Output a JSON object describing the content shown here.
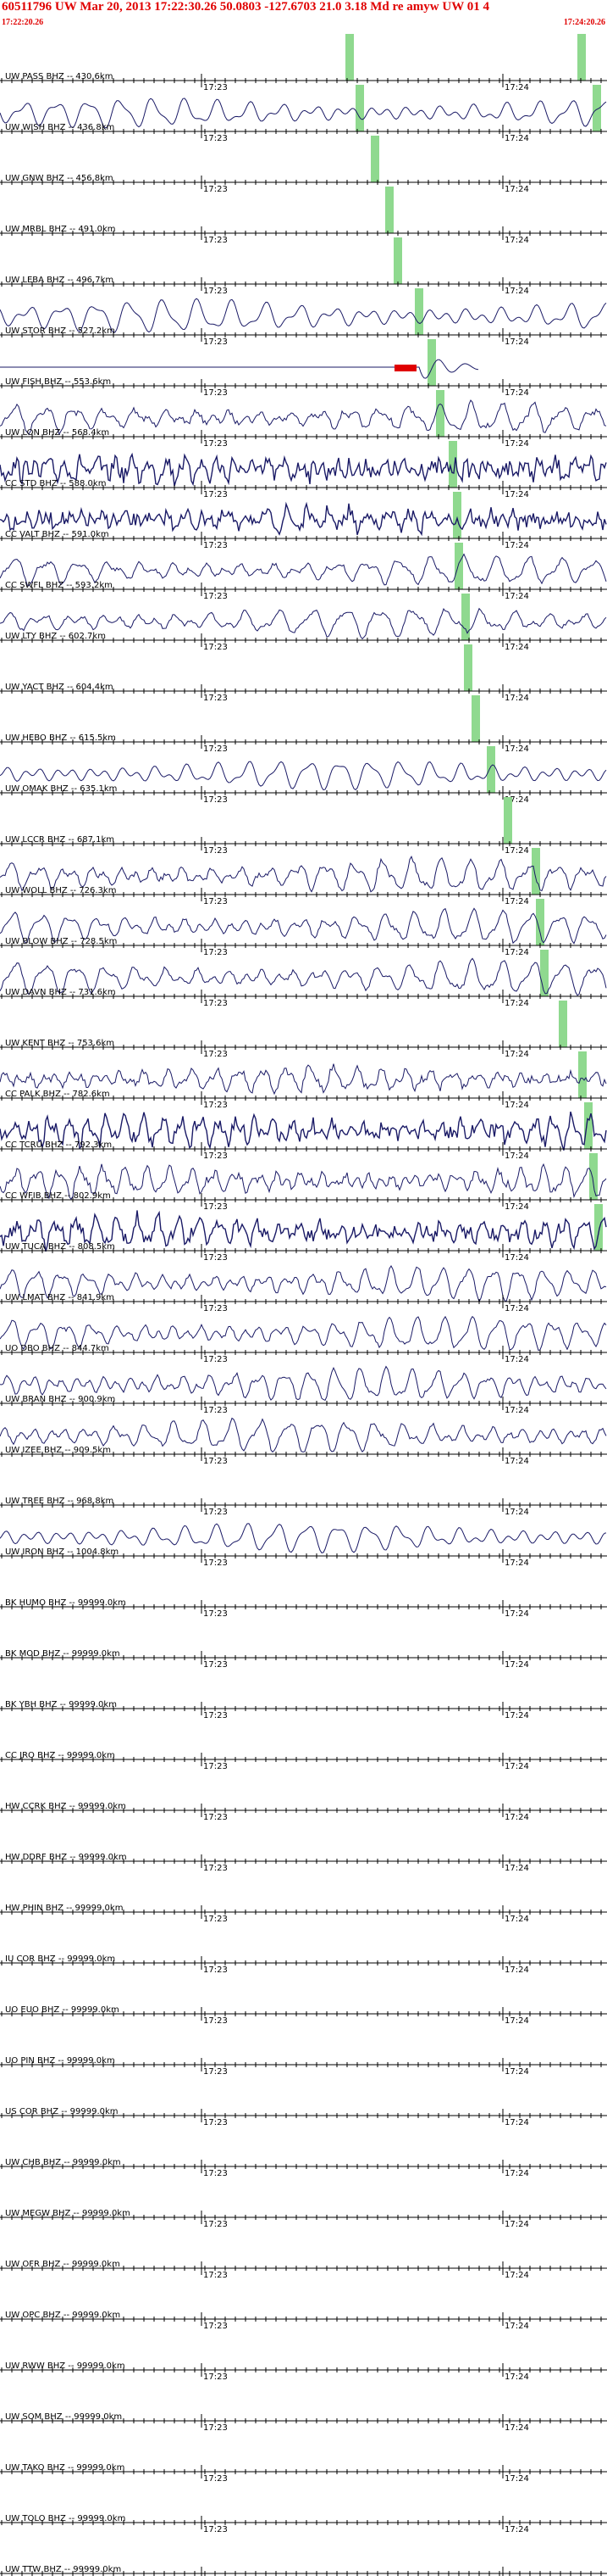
{
  "header": {
    "title": "60511796 UW Mar 20, 2013 17:22:30.26   50.0803 -127.6703 21.0 3.18 Md re amyw UW 01   4",
    "time_start": "17:22:20.26",
    "time_end": "17:24:20.26"
  },
  "colors": {
    "header_text": "#e00000",
    "trace": "#1a1a66",
    "pick_marker": "#8fd98f",
    "clip_marker": "#e00000",
    "axis": "#000000"
  },
  "chart_data": {
    "type": "line",
    "title": "60511796 UW Mar 20, 2013 17:22:30.26   50.0803 -127.6703 21.0 3.18 Md re amyw UW 01   4",
    "x_range": [
      "17:22:20.26",
      "17:24:20.26"
    ],
    "tick_labels": [
      "17:23",
      "17:24"
    ],
    "grid": false,
    "traces": [
      {
        "label": "UW PASS BHZ -- 430.6km",
        "amp": 0,
        "noise": 0,
        "period": 40,
        "pick": 408,
        "pick2": 682
      },
      {
        "label": "UW WISH BHZ -- 436.8km",
        "amp": 14,
        "noise": 0,
        "period": 38,
        "pick": 420,
        "pick2": 700
      },
      {
        "label": "UW GNW BHZ -- 456.8km",
        "amp": 0,
        "noise": 0,
        "period": 40,
        "pick": 438
      },
      {
        "label": "UW MRBL BHZ -- 491.0km",
        "amp": 0,
        "noise": 0,
        "period": 40,
        "pick": 455
      },
      {
        "label": "UW LEBA BHZ -- 496.7km",
        "amp": 0,
        "noise": 0,
        "period": 40,
        "pick": 465
      },
      {
        "label": "UW STOR BHZ -- 527.2km",
        "amp": 16,
        "noise": 0,
        "period": 40,
        "pick": 490
      },
      {
        "label": "UW FISH BHZ -- 553.6km",
        "amp": 0,
        "noise": 0,
        "period": 40,
        "pick": 505,
        "clip": [
          466,
          492
        ],
        "burst": 495
      },
      {
        "label": "UW LON BHZ -- 568.4km",
        "amp": 14,
        "noise": 3,
        "period": 36,
        "pick": 515
      },
      {
        "label": "CC STD BHZ -- 588.0km",
        "amp": 10,
        "noise": 10,
        "period": 20,
        "pick": 530
      },
      {
        "label": "CC VALT BHZ -- 591.0km",
        "amp": 10,
        "noise": 8,
        "period": 24,
        "pick": 535
      },
      {
        "label": "CC SWFL BHZ -- 593.2km",
        "amp": 14,
        "noise": 2,
        "period": 38,
        "pick": 537
      },
      {
        "label": "UW LTY BHZ -- 602.7km",
        "amp": 14,
        "noise": 2,
        "period": 40,
        "pick": 545
      },
      {
        "label": "UW YACT BHZ -- 604.4km",
        "amp": 0,
        "noise": 0,
        "period": 40,
        "pick": 548
      },
      {
        "label": "UW HEBO BHZ -- 615.5km",
        "amp": 0,
        "noise": 0,
        "period": 40,
        "pick": 557
      },
      {
        "label": "UW OMAK BHZ -- 635.1km",
        "amp": 14,
        "noise": 0,
        "period": 36,
        "pick": 575
      },
      {
        "label": "UW LCCR BHZ -- 687.1km",
        "amp": 0,
        "noise": 0,
        "period": 40,
        "pick": 595
      },
      {
        "label": "UW WOLL BHZ -- 726.3km",
        "amp": 16,
        "noise": 3,
        "period": 34,
        "pick": 628
      },
      {
        "label": "UW BLOW BHZ -- 728.5km",
        "amp": 16,
        "noise": 2,
        "period": 34,
        "pick": 633
      },
      {
        "label": "UW DAVN BHZ -- 731.6km",
        "amp": 16,
        "noise": 2,
        "period": 36,
        "pick": 638
      },
      {
        "label": "UW KENT BHZ -- 753.6km",
        "amp": 0,
        "noise": 0,
        "period": 40,
        "pick": 660
      },
      {
        "label": "CC PALK BHZ -- 782.6km",
        "amp": 12,
        "noise": 4,
        "period": 28,
        "pick": 683
      },
      {
        "label": "CC TCRU BHZ -- 792.3km",
        "amp": 14,
        "noise": 8,
        "period": 22,
        "pick": 690
      },
      {
        "label": "CC WFIB BHZ -- 802.9km",
        "amp": 14,
        "noise": 4,
        "period": 26,
        "pick": 696
      },
      {
        "label": "UW TUCA BHZ -- 808.5km",
        "amp": 14,
        "noise": 7,
        "period": 24,
        "pick": 702
      },
      {
        "label": "UW LMAT BHZ -- 841.9km",
        "amp": 16,
        "noise": 2,
        "period": 30
      },
      {
        "label": "UO DBO BHZ -- 844.7km",
        "amp": 16,
        "noise": 2,
        "period": 32
      },
      {
        "label": "UW BRAN BHZ -- 900.9km",
        "amp": 16,
        "noise": 2,
        "period": 30
      },
      {
        "label": "UW IZEE BHZ -- 909.5km",
        "amp": 16,
        "noise": 2,
        "period": 34
      },
      {
        "label": "UW TREE BHZ -- 968.8km",
        "amp": 0,
        "noise": 0,
        "period": 40
      },
      {
        "label": "UW IRON BHZ -- 1004.8km",
        "amp": 14,
        "noise": 0,
        "period": 36
      },
      {
        "label": "BK HUMO BHZ -- 99999.0km",
        "amp": 0,
        "noise": 0,
        "period": 40
      },
      {
        "label": "BK MOD BHZ -- 99999.0km",
        "amp": 0,
        "noise": 0,
        "period": 40
      },
      {
        "label": "BK YBH BHZ -- 99999.0km",
        "amp": 0,
        "noise": 0,
        "period": 40
      },
      {
        "label": "CC JRO BHZ -- 99999.0km",
        "amp": 0,
        "noise": 0,
        "period": 40
      },
      {
        "label": "HW CCRK BHZ -- 99999.0km",
        "amp": 0,
        "noise": 0,
        "period": 40
      },
      {
        "label": "HW DDRF BHZ -- 99999.0km",
        "amp": 0,
        "noise": 0,
        "period": 40
      },
      {
        "label": "HW PHIN BHZ -- 99999.0km",
        "amp": 0,
        "noise": 0,
        "period": 40
      },
      {
        "label": "IU COR BHZ -- 99999.0km",
        "amp": 0,
        "noise": 0,
        "period": 40
      },
      {
        "label": "UO EUO BHZ -- 99999.0km",
        "amp": 0,
        "noise": 0,
        "period": 40
      },
      {
        "label": "UO PIN BHZ -- 99999.0km",
        "amp": 0,
        "noise": 0,
        "period": 40
      },
      {
        "label": "US COR BHZ -- 99999.0km",
        "amp": 0,
        "noise": 0,
        "period": 40
      },
      {
        "label": "UW CHB BHZ -- 99999.0km",
        "amp": 0,
        "noise": 0,
        "period": 40
      },
      {
        "label": "UW MEGW BHZ -- 99999.0km",
        "amp": 0,
        "noise": 0,
        "period": 40
      },
      {
        "label": "UW OFR BHZ -- 99999.0km",
        "amp": 0,
        "noise": 0,
        "period": 40
      },
      {
        "label": "UW OPC BHZ -- 99999.0km",
        "amp": 0,
        "noise": 0,
        "period": 40
      },
      {
        "label": "UW RWW BHZ -- 99999.0km",
        "amp": 0,
        "noise": 0,
        "period": 40
      },
      {
        "label": "UW SOM BHZ -- 99999.0km",
        "amp": 0,
        "noise": 0,
        "period": 40
      },
      {
        "label": "UW TAKO BHZ -- 99999.0km",
        "amp": 0,
        "noise": 0,
        "period": 40
      },
      {
        "label": "UW TOLO BHZ -- 99999.0km",
        "amp": 0,
        "noise": 0,
        "period": 40
      },
      {
        "label": "UW TTW BHZ -- 99999.0km",
        "amp": 0,
        "noise": 0,
        "period": 40
      }
    ]
  }
}
